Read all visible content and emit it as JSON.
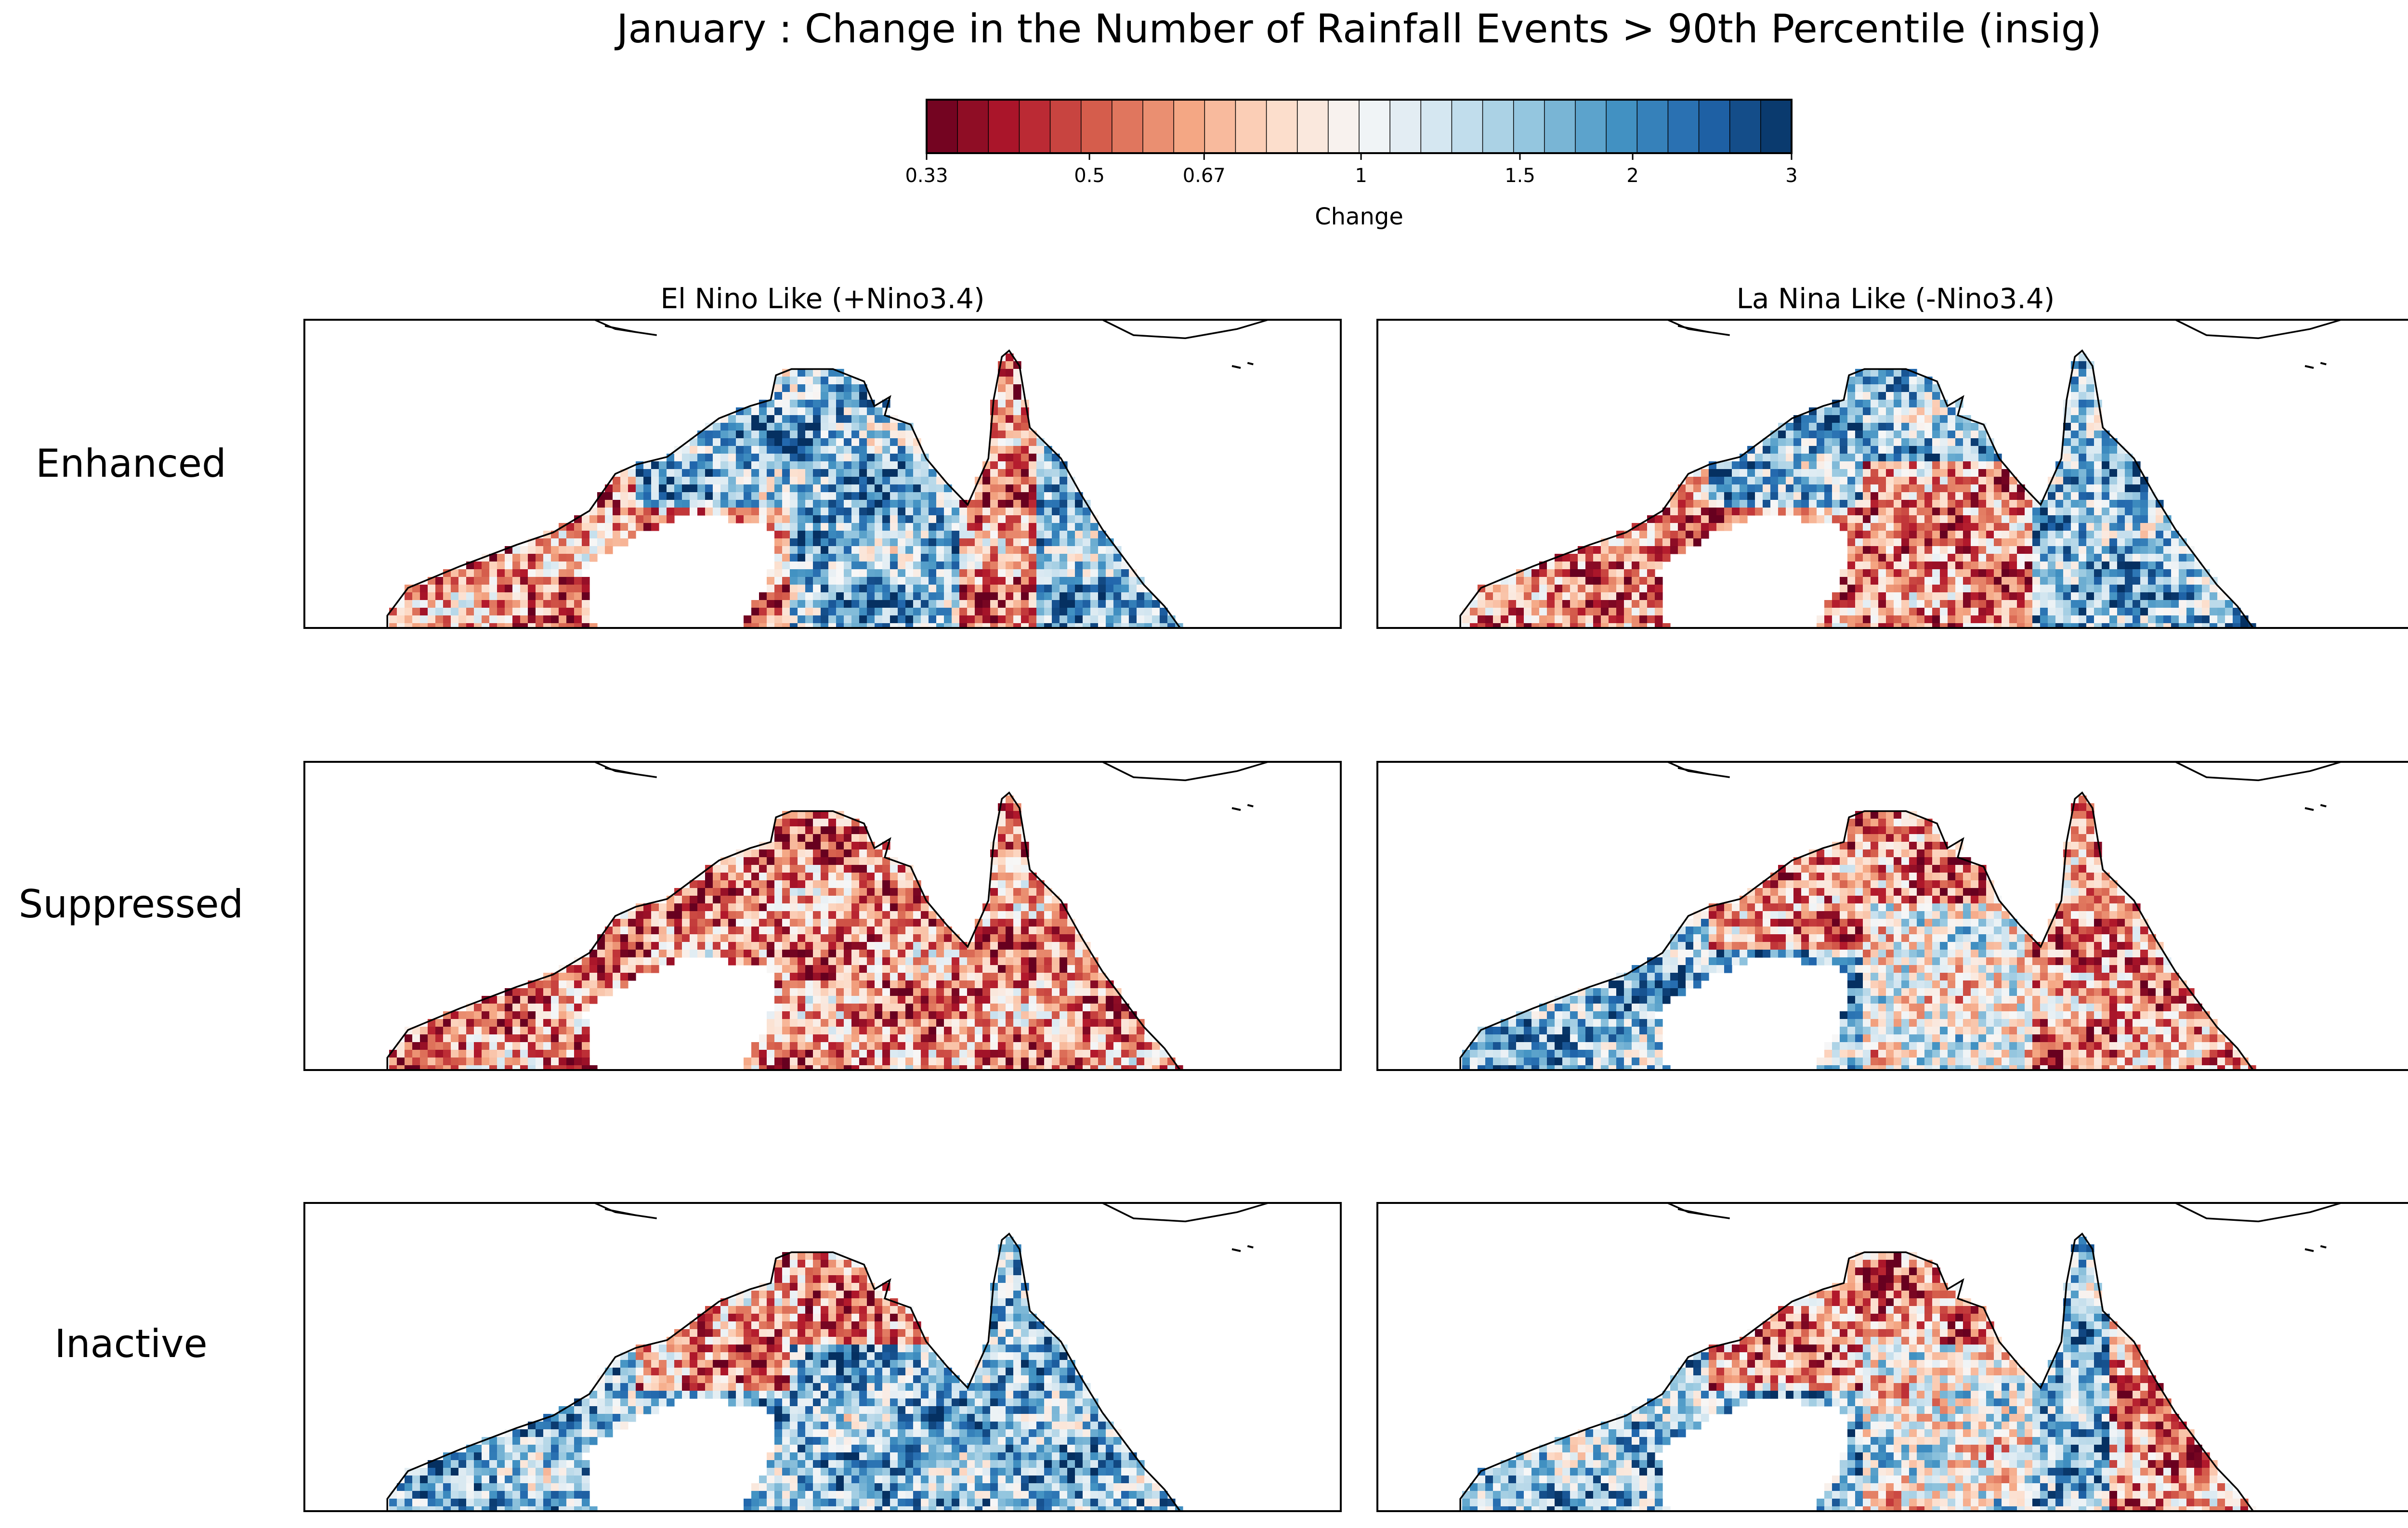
{
  "chart_data": {
    "type": "heatmap",
    "title": "January : Change in the Number of Rainfall Events > 90th Percentile (insig)",
    "colorbar": {
      "label": "Change",
      "ticks": [
        "0.33",
        "0.5",
        "0.67",
        "1",
        "1.5",
        "2",
        "3"
      ],
      "scale": "log",
      "range": [
        0.33,
        3
      ],
      "n_levels": 28,
      "colormap": "RdBu",
      "low_color": "#67001f",
      "mid_color": "#f7f7f7",
      "high_color": "#053061"
    },
    "columns": [
      "El Nino Like (+Nino3.4)",
      "La Nina Like (-Nino3.4)"
    ],
    "rows": [
      "Enhanced",
      "Suppressed",
      "Inactive"
    ],
    "panels": [
      {
        "row": "Enhanced",
        "column": "El Nino Like (+Nino3.4)",
        "dominant": "increase",
        "regions": [
          {
            "area": "west",
            "tendency": "decrease"
          },
          {
            "area": "top-end",
            "tendency": "increase"
          },
          {
            "area": "gulf",
            "tendency": "increase"
          },
          {
            "area": "cape-york",
            "tendency": "decrease"
          },
          {
            "area": "east-coast",
            "tendency": "increase"
          }
        ]
      },
      {
        "row": "Enhanced",
        "column": "La Nina Like (-Nino3.4)",
        "dominant": "increase",
        "regions": [
          {
            "area": "west",
            "tendency": "decrease"
          },
          {
            "area": "top-end",
            "tendency": "increase"
          },
          {
            "area": "gulf",
            "tendency": "decrease"
          },
          {
            "area": "cape-york",
            "tendency": "increase"
          },
          {
            "area": "east-coast",
            "tendency": "increase"
          }
        ]
      },
      {
        "row": "Suppressed",
        "column": "El Nino Like (+Nino3.4)",
        "dominant": "decrease",
        "regions": [
          {
            "area": "west",
            "tendency": "decrease"
          },
          {
            "area": "top-end",
            "tendency": "decrease"
          },
          {
            "area": "gulf",
            "tendency": "decrease"
          },
          {
            "area": "cape-york",
            "tendency": "decrease"
          },
          {
            "area": "east-coast",
            "tendency": "decrease"
          }
        ]
      },
      {
        "row": "Suppressed",
        "column": "La Nina Like (-Nino3.4)",
        "dominant": "decrease",
        "regions": [
          {
            "area": "west",
            "tendency": "increase"
          },
          {
            "area": "top-end",
            "tendency": "decrease"
          },
          {
            "area": "gulf",
            "tendency": "mixed"
          },
          {
            "area": "cape-york",
            "tendency": "decrease"
          },
          {
            "area": "east-coast",
            "tendency": "decrease"
          }
        ]
      },
      {
        "row": "Inactive",
        "column": "El Nino Like (+Nino3.4)",
        "dominant": "mixed",
        "regions": [
          {
            "area": "west",
            "tendency": "increase"
          },
          {
            "area": "top-end",
            "tendency": "decrease"
          },
          {
            "area": "gulf",
            "tendency": "increase"
          },
          {
            "area": "cape-york",
            "tendency": "increase"
          },
          {
            "area": "east-coast",
            "tendency": "increase"
          }
        ]
      },
      {
        "row": "Inactive",
        "column": "La Nina Like (-Nino3.4)",
        "dominant": "mixed",
        "regions": [
          {
            "area": "west",
            "tendency": "increase"
          },
          {
            "area": "top-end",
            "tendency": "decrease"
          },
          {
            "area": "gulf",
            "tendency": "mixed"
          },
          {
            "area": "cape-york",
            "tendency": "increase"
          },
          {
            "area": "east-coast",
            "tendency": "decrease"
          }
        ]
      }
    ]
  }
}
